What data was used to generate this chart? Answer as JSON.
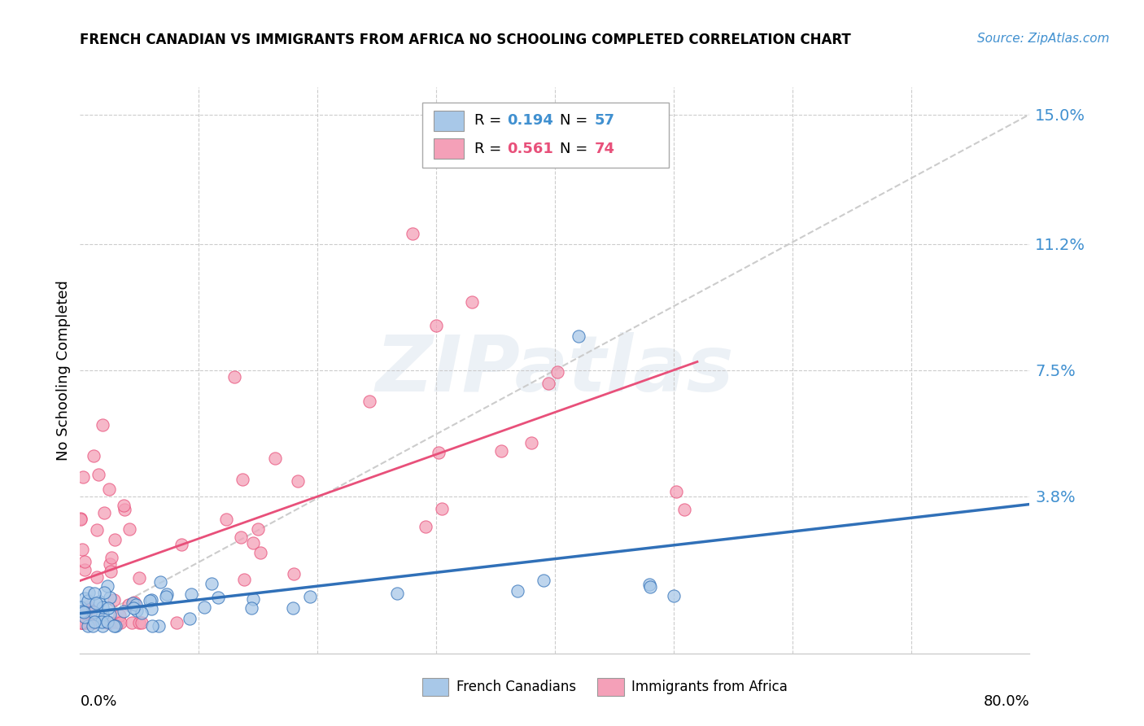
{
  "title": "FRENCH CANADIAN VS IMMIGRANTS FROM AFRICA NO SCHOOLING COMPLETED CORRELATION CHART",
  "source": "Source: ZipAtlas.com",
  "ylabel": "No Schooling Completed",
  "xmin": 0.0,
  "xmax": 0.8,
  "ymin": -0.008,
  "ymax": 0.158,
  "watermark": "ZIPatlas",
  "legend_r1": "0.194",
  "legend_n1": "57",
  "legend_r2": "0.561",
  "legend_n2": "74",
  "color_blue": "#a8c8e8",
  "color_pink": "#f4a0b8",
  "color_blue_line": "#3070b8",
  "color_pink_line": "#e8507a",
  "color_r_blue": "#4090d0",
  "color_r_pink": "#e8507a",
  "ytick_vals": [
    0.038,
    0.075,
    0.112,
    0.15
  ],
  "ytick_labels": [
    "3.8%",
    "7.5%",
    "11.2%",
    "15.0%"
  ]
}
